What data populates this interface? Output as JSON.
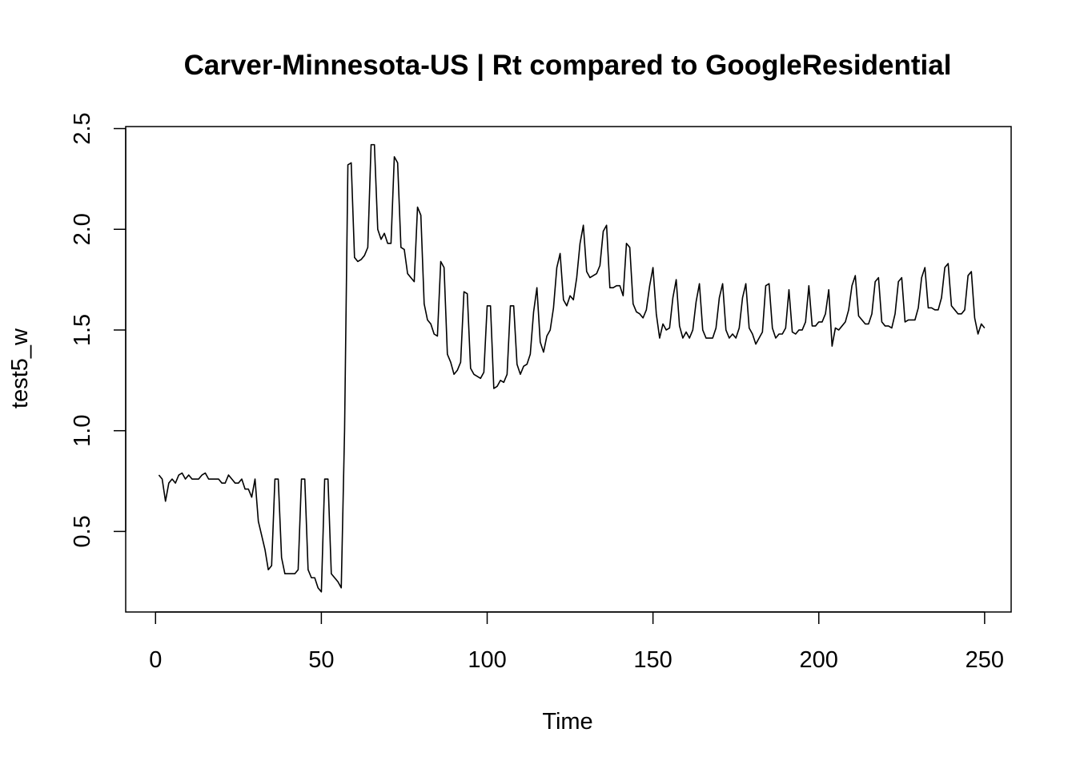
{
  "chart_data": {
    "type": "line",
    "title": "Carver-Minnesota-US | Rt compared to GoogleResidential",
    "xlabel": "Time",
    "ylabel": "test5_w",
    "xlim": [
      -9,
      258
    ],
    "ylim": [
      0.1,
      2.51
    ],
    "x_ticks": [
      0,
      50,
      100,
      150,
      200,
      250
    ],
    "y_ticks": [
      0.5,
      1.0,
      1.5,
      2.0,
      2.5
    ],
    "x_tick_labels": [
      "0",
      "50",
      "100",
      "150",
      "200",
      "250"
    ],
    "y_tick_labels": [
      "0.5",
      "1.0",
      "1.5",
      "2.0",
      "2.5"
    ],
    "grid": false,
    "legend": "none",
    "line_color": "#000000",
    "series": [
      {
        "x_start": 1,
        "x_step": 1,
        "values": [
          0.78,
          0.76,
          0.65,
          0.74,
          0.76,
          0.74,
          0.78,
          0.79,
          0.76,
          0.78,
          0.76,
          0.76,
          0.76,
          0.78,
          0.79,
          0.76,
          0.76,
          0.76,
          0.76,
          0.74,
          0.74,
          0.78,
          0.76,
          0.74,
          0.74,
          0.76,
          0.71,
          0.71,
          0.67,
          0.76,
          0.55,
          0.48,
          0.41,
          0.31,
          0.33,
          0.76,
          0.76,
          0.37,
          0.29,
          0.29,
          0.29,
          0.29,
          0.31,
          0.76,
          0.76,
          0.31,
          0.27,
          0.27,
          0.22,
          0.2,
          0.76,
          0.76,
          0.29,
          0.27,
          0.25,
          0.22,
          1.0,
          2.32,
          2.33,
          1.86,
          1.84,
          1.85,
          1.87,
          1.91,
          2.42,
          2.42,
          2.0,
          1.95,
          1.98,
          1.93,
          1.93,
          2.36,
          2.33,
          1.91,
          1.9,
          1.78,
          1.76,
          1.74,
          2.11,
          2.07,
          1.63,
          1.55,
          1.53,
          1.48,
          1.47,
          1.84,
          1.81,
          1.38,
          1.34,
          1.28,
          1.3,
          1.34,
          1.69,
          1.68,
          1.31,
          1.28,
          1.27,
          1.26,
          1.29,
          1.62,
          1.62,
          1.21,
          1.22,
          1.25,
          1.24,
          1.28,
          1.62,
          1.62,
          1.33,
          1.28,
          1.32,
          1.33,
          1.38,
          1.59,
          1.71,
          1.44,
          1.39,
          1.47,
          1.5,
          1.61,
          1.81,
          1.88,
          1.65,
          1.62,
          1.67,
          1.65,
          1.76,
          1.93,
          2.02,
          1.79,
          1.76,
          1.77,
          1.78,
          1.82,
          1.99,
          2.02,
          1.71,
          1.71,
          1.72,
          1.72,
          1.67,
          1.93,
          1.91,
          1.63,
          1.59,
          1.58,
          1.56,
          1.6,
          1.72,
          1.81,
          1.58,
          1.46,
          1.53,
          1.5,
          1.51,
          1.66,
          1.75,
          1.52,
          1.46,
          1.49,
          1.46,
          1.5,
          1.64,
          1.73,
          1.5,
          1.46,
          1.46,
          1.46,
          1.51,
          1.66,
          1.73,
          1.5,
          1.46,
          1.48,
          1.46,
          1.51,
          1.66,
          1.73,
          1.51,
          1.48,
          1.43,
          1.46,
          1.49,
          1.72,
          1.73,
          1.51,
          1.46,
          1.48,
          1.48,
          1.51,
          1.7,
          1.49,
          1.48,
          1.5,
          1.5,
          1.54,
          1.72,
          1.52,
          1.52,
          1.54,
          1.54,
          1.58,
          1.7,
          1.42,
          1.51,
          1.5,
          1.52,
          1.54,
          1.6,
          1.72,
          1.77,
          1.57,
          1.55,
          1.53,
          1.53,
          1.58,
          1.74,
          1.76,
          1.54,
          1.52,
          1.52,
          1.51,
          1.58,
          1.74,
          1.76,
          1.54,
          1.55,
          1.55,
          1.55,
          1.61,
          1.76,
          1.81,
          1.61,
          1.61,
          1.6,
          1.6,
          1.66,
          1.81,
          1.83,
          1.62,
          1.6,
          1.58,
          1.58,
          1.6,
          1.77,
          1.79,
          1.56,
          1.48,
          1.53,
          1.51
        ]
      }
    ]
  }
}
